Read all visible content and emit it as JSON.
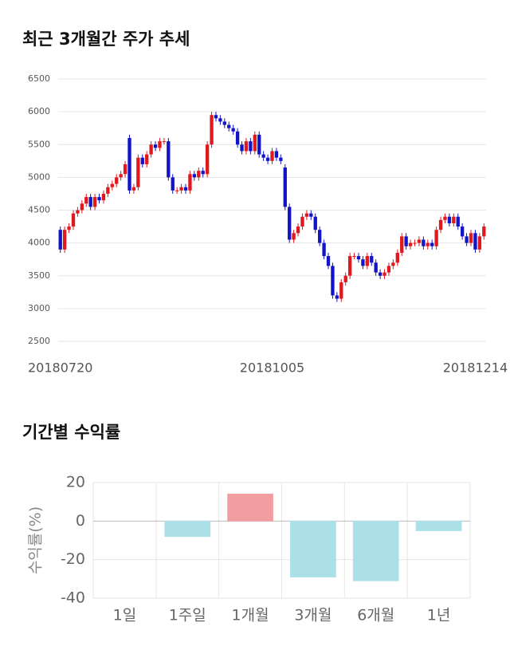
{
  "chart_data": [
    {
      "type": "candlestick",
      "title": "최근 3개월간 주가 추세",
      "categories": [
        "20180720",
        null,
        null,
        null,
        null,
        null,
        null,
        null,
        null,
        null,
        null,
        null,
        null,
        null,
        null,
        null,
        null,
        null,
        null,
        null,
        null,
        null,
        null,
        null,
        null,
        null,
        null,
        null,
        null,
        null,
        null,
        null,
        null,
        null,
        null,
        null,
        null,
        null,
        null,
        null,
        null,
        null,
        null,
        null,
        null,
        null,
        null,
        null,
        null,
        "20181005",
        null,
        null,
        null,
        null,
        null,
        null,
        null,
        null,
        null,
        null,
        null,
        null,
        null,
        null,
        null,
        null,
        null,
        null,
        null,
        null,
        null,
        null,
        null,
        null,
        null,
        null,
        null,
        null,
        null,
        null,
        null,
        null,
        null,
        null,
        null,
        null,
        null,
        null,
        null,
        null,
        null,
        null,
        null,
        null,
        null,
        null,
        "20181214",
        null,
        null
      ],
      "open": [
        4200,
        3900,
        4200,
        4250,
        4450,
        4500,
        4600,
        4700,
        4550,
        4700,
        4650,
        4750,
        4850,
        4900,
        5000,
        5050,
        5600,
        4800,
        4850,
        5300,
        5200,
        5350,
        5500,
        5450,
        5550,
        5550,
        5000,
        4800,
        4800,
        4850,
        4800,
        5050,
        5000,
        5100,
        5050,
        5500,
        5950,
        5900,
        5850,
        5800,
        5750,
        5700,
        5500,
        5400,
        5550,
        5400,
        5650,
        5350,
        5300,
        5250,
        5400,
        5300,
        5150,
        4550,
        4050,
        4150,
        4250,
        4400,
        4450,
        4400,
        4200,
        4000,
        3800,
        3650,
        3200,
        3150,
        3400,
        3500,
        3800,
        3800,
        3750,
        3650,
        3800,
        3700,
        3550,
        3500,
        3550,
        3650,
        3700,
        3850,
        4100,
        3950,
        4000,
        4000,
        4050,
        3950,
        4000,
        3950,
        4200,
        4350,
        4400,
        4300,
        4400,
        4250,
        4100,
        4000,
        4150,
        3900,
        4100
      ],
      "high": [
        4250,
        4250,
        4300,
        4500,
        4550,
        4650,
        4750,
        4750,
        4750,
        4750,
        4800,
        4900,
        4950,
        5050,
        5100,
        5250,
        5650,
        4900,
        5350,
        5350,
        5400,
        5550,
        5550,
        5600,
        5600,
        5600,
        5050,
        4850,
        4900,
        4900,
        5100,
        5100,
        5150,
        5150,
        5550,
        6000,
        6000,
        5950,
        5900,
        5850,
        5800,
        5750,
        5550,
        5600,
        5600,
        5700,
        5700,
        5400,
        5350,
        5450,
        5450,
        5350,
        5200,
        4600,
        4200,
        4300,
        4450,
        4500,
        4500,
        4450,
        4250,
        4050,
        3850,
        3700,
        3250,
        3450,
        3550,
        3850,
        3850,
        3850,
        3800,
        3850,
        3850,
        3750,
        3600,
        3600,
        3700,
        3750,
        3900,
        4150,
        4150,
        4050,
        4050,
        4100,
        4100,
        4050,
        4050,
        4250,
        4400,
        4450,
        4450,
        4450,
        4450,
        4300,
        4150,
        4200,
        4200,
        4150,
        4300
      ],
      "low": [
        3850,
        3850,
        4150,
        4200,
        4400,
        4450,
        4550,
        4500,
        4500,
        4600,
        4600,
        4700,
        4800,
        4850,
        4950,
        5000,
        4750,
        4750,
        4800,
        5150,
        5150,
        5300,
        5400,
        5400,
        5500,
        4950,
        4750,
        4750,
        4750,
        4750,
        4750,
        4950,
        4950,
        5000,
        5000,
        5450,
        5850,
        5800,
        5750,
        5700,
        5650,
        5450,
        5350,
        5350,
        5350,
        5350,
        5300,
        5250,
        5200,
        5200,
        5250,
        5200,
        4500,
        4000,
        4000,
        4100,
        4200,
        4350,
        4350,
        4150,
        3950,
        3750,
        3600,
        3150,
        3100,
        3100,
        3350,
        3450,
        3750,
        3700,
        3600,
        3600,
        3650,
        3500,
        3450,
        3450,
        3500,
        3600,
        3650,
        3800,
        3900,
        3900,
        3950,
        3950,
        3900,
        3900,
        3900,
        3900,
        4150,
        4300,
        4250,
        4250,
        4200,
        4050,
        3950,
        3950,
        3850,
        3850,
        4050
      ],
      "close": [
        3900,
        4200,
        4250,
        4450,
        4500,
        4600,
        4700,
        4550,
        4700,
        4650,
        4750,
        4850,
        4900,
        5000,
        5050,
        5200,
        4800,
        4850,
        5300,
        5200,
        5350,
        5500,
        5450,
        5550,
        5550,
        5000,
        4800,
        4800,
        4850,
        4800,
        5050,
        5000,
        5100,
        5050,
        5500,
        5950,
        5900,
        5850,
        5800,
        5750,
        5700,
        5500,
        5400,
        5550,
        5400,
        5650,
        5350,
        5300,
        5250,
        5400,
        5300,
        5250,
        4550,
        4050,
        4150,
        4250,
        4400,
        4450,
        4400,
        4200,
        4000,
        3800,
        3650,
        3200,
        3150,
        3400,
        3500,
        3800,
        3800,
        3750,
        3650,
        3800,
        3700,
        3550,
        3500,
        3550,
        3650,
        3700,
        3850,
        4100,
        3950,
        4000,
        4000,
        4050,
        3950,
        4000,
        3950,
        4200,
        4350,
        4400,
        4300,
        4400,
        4250,
        4100,
        4000,
        4150,
        3900,
        4100,
        4250
      ],
      "up_color": "#e0191e",
      "down_color": "#1313c8",
      "ylim": [
        2500,
        6500
      ],
      "yticks": [
        2500,
        3000,
        3500,
        4000,
        4500,
        5000,
        5500,
        6000,
        6500
      ],
      "grid": true
    },
    {
      "type": "bar",
      "title": "기간별 수익률",
      "ylabel": "수익률(%)",
      "categories": [
        "1일",
        "1주일",
        "1개월",
        "3개월",
        "6개월",
        "1년"
      ],
      "values": [
        0,
        -8,
        14,
        -29,
        -31,
        -5
      ],
      "positive_color": "#ffa6a8",
      "negative_color": "#b4ecf5",
      "ylim": [
        -40,
        20
      ],
      "yticks": [
        -40,
        -20,
        0,
        20
      ],
      "grid": true
    }
  ]
}
